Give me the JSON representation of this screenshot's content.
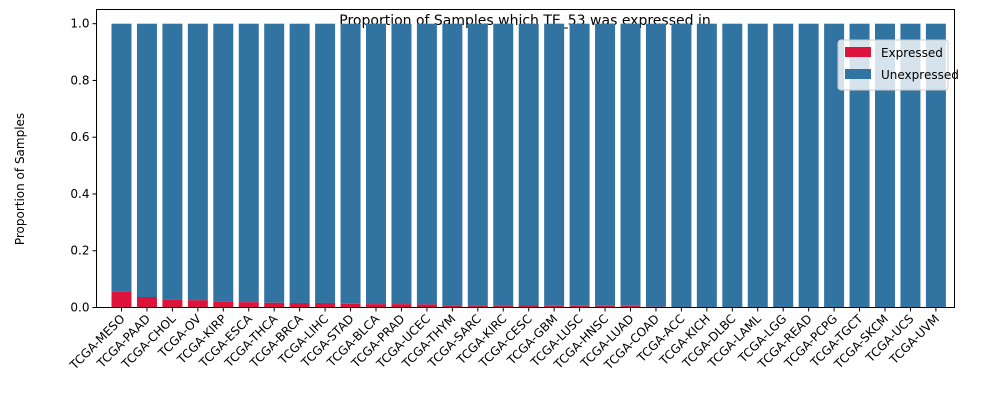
{
  "chart_data": {
    "type": "bar",
    "stacked": true,
    "title": "Proportion of Samples which TE_53 was expressed in",
    "xlabel": "",
    "ylabel": "Proportion of Samples",
    "ylim": [
      0,
      1.05
    ],
    "yticks": [
      "0.0",
      "0.2",
      "0.4",
      "0.6",
      "0.8",
      "1.0"
    ],
    "categories": [
      "TCGA-MESO",
      "TCGA-PAAD",
      "TCGA-CHOL",
      "TCGA-OV",
      "TCGA-KIRP",
      "TCGA-ESCA",
      "TCGA-THCA",
      "TCGA-BRCA",
      "TCGA-LIHC",
      "TCGA-STAD",
      "TCGA-BLCA",
      "TCGA-PRAD",
      "TCGA-UCEC",
      "TCGA-THYM",
      "TCGA-SARC",
      "TCGA-KIRC",
      "TCGA-CESC",
      "TCGA-GBM",
      "TCGA-LUSC",
      "TCGA-HNSC",
      "TCGA-LUAD",
      "TCGA-COAD",
      "TCGA-ACC",
      "TCGA-KICH",
      "TCGA-DLBC",
      "TCGA-LAML",
      "TCGA-LGG",
      "TCGA-READ",
      "TCGA-PCPG",
      "TCGA-TGCT",
      "TCGA-SKCM",
      "TCGA-UCS",
      "TCGA-UVM"
    ],
    "series": [
      {
        "name": "Expressed",
        "color": "#dc143c",
        "values": [
          0.056,
          0.037,
          0.029,
          0.026,
          0.022,
          0.019,
          0.017,
          0.016,
          0.016,
          0.013,
          0.012,
          0.012,
          0.011,
          0.008,
          0.008,
          0.008,
          0.007,
          0.006,
          0.006,
          0.006,
          0.006,
          0.003,
          0,
          0,
          0,
          0,
          0,
          0,
          0,
          0,
          0,
          0,
          0
        ]
      },
      {
        "name": "Unexpressed",
        "color": "#3274a1",
        "values": [
          0.944,
          0.963,
          0.971,
          0.974,
          0.978,
          0.981,
          0.983,
          0.984,
          0.984,
          0.987,
          0.988,
          0.988,
          0.989,
          0.992,
          0.992,
          0.992,
          0.993,
          0.994,
          0.994,
          0.994,
          0.994,
          0.997,
          1,
          1,
          1,
          1,
          1,
          1,
          1,
          1,
          1,
          1,
          1
        ]
      }
    ],
    "legend_position": "top-right",
    "grid": false
  }
}
